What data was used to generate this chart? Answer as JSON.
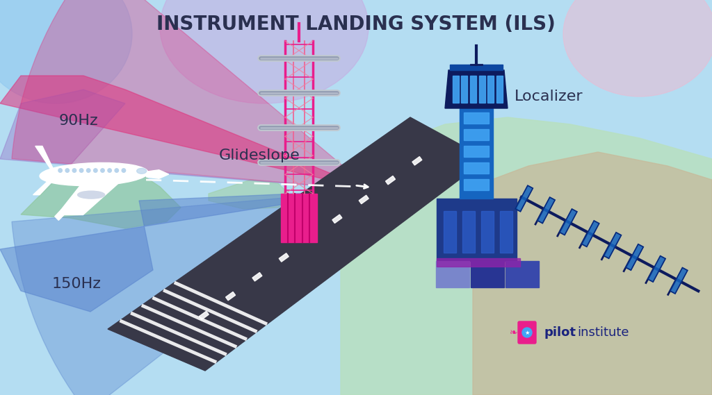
{
  "title": "INSTRUMENT LANDING SYSTEM (ILS)",
  "title_color": "#2a3050",
  "title_fontsize": 20,
  "beam_90hz_color": "#e0307a",
  "beam_150hz_color": "#5580cc",
  "beam_mid_color": "#7050a0",
  "label_90hz": "90Hz",
  "label_150hz": "150Hz",
  "label_glideslope": "Glideslope",
  "label_localizer": "Localizer",
  "label_color": "#2a3050",
  "runway_color": "#383848",
  "stripe_color": "#ffffff",
  "glideslope_pink": "#e91e8c",
  "glideslope_light": "#f48fb1",
  "tower_dark": "#0d1b5e",
  "tower_mid": "#1565c0",
  "tower_light": "#42a5f5",
  "tower_purple": "#7b1fa2",
  "localizer_dark": "#0d1b5e",
  "localizer_mid": "#1565c0",
  "bg_sky": "#a8d8f0",
  "bg_purple_blob": "#c8a8e0",
  "bg_pink_blob": "#f0b8d0",
  "bg_green": "#b8e0c0",
  "bg_tan": "#c8b898",
  "pilot_color": "#1a237e",
  "logo_pink": "#e91e8c",
  "logo_blue": "#42a5f5"
}
